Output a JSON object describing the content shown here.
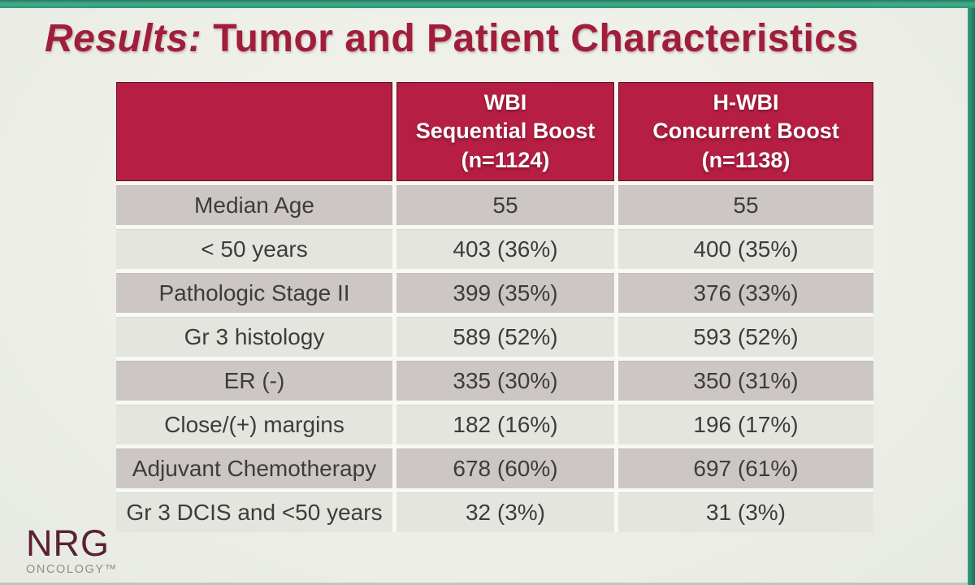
{
  "title": {
    "italic_part": "Results:",
    "normal_part": " Tumor and Patient Characteristics"
  },
  "table": {
    "header": {
      "col0": "",
      "col1": "WBI\nSequential Boost\n(n=1124)",
      "col2": "H-WBI\nConcurrent Boost\n(n=1138)"
    },
    "rows": [
      {
        "label": "Median Age",
        "wbi": "55",
        "hwbi": "55"
      },
      {
        "label": "< 50 years",
        "wbi": "403 (36%)",
        "hwbi": "400 (35%)"
      },
      {
        "label": "Pathologic Stage II",
        "wbi": "399 (35%)",
        "hwbi": "376 (33%)"
      },
      {
        "label": "Gr 3 histology",
        "wbi": "589 (52%)",
        "hwbi": "593 (52%)"
      },
      {
        "label": "ER (-)",
        "wbi": "335 (30%)",
        "hwbi": "350 (31%)"
      },
      {
        "label": "Close/(+) margins",
        "wbi": "182 (16%)",
        "hwbi": "196 (17%)"
      },
      {
        "label": "Adjuvant Chemotherapy",
        "wbi": "678 (60%)",
        "hwbi": "697 (61%)"
      },
      {
        "label": "Gr 3 DCIS and <50 years",
        "wbi": "32 (3%)",
        "hwbi": "31 (3%)"
      }
    ]
  },
  "logo": {
    "name": "NRG",
    "subname": "ONCOLOGY™"
  },
  "colors": {
    "header_bg": "#b61f43",
    "header_border": "#5f0f27",
    "title_text": "#a01e3c",
    "row_dark": "#ccc7c4",
    "row_light": "#e5e5e0",
    "body_text": "#3d3c3a",
    "frame_green": "#2f9c7d",
    "slide_bg": "#edefe8",
    "logo_maroon": "#5a2133",
    "logo_gray": "#8f8f8a"
  }
}
